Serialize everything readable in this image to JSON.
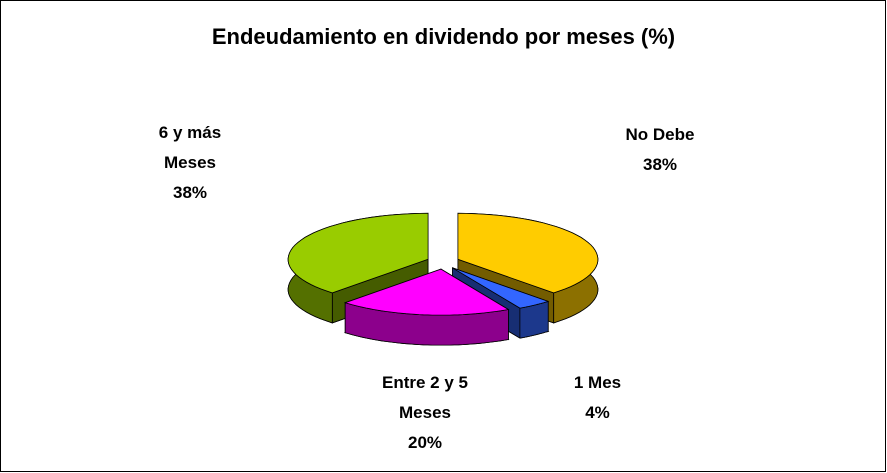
{
  "chart_data": {
    "type": "pie",
    "title": "Endeudamiento en dividendo por meses (%)",
    "categories": [
      "No Debe",
      "1 Mes",
      "Entre 2 y 5 Meses",
      "6 y más Meses"
    ],
    "values": [
      38,
      4,
      20,
      38
    ],
    "value_labels": [
      "38%",
      "4%",
      "20%",
      "38%"
    ],
    "colors": [
      "#ffcc00",
      "#3366ff",
      "#ff00ff",
      "#99cc00"
    ]
  }
}
